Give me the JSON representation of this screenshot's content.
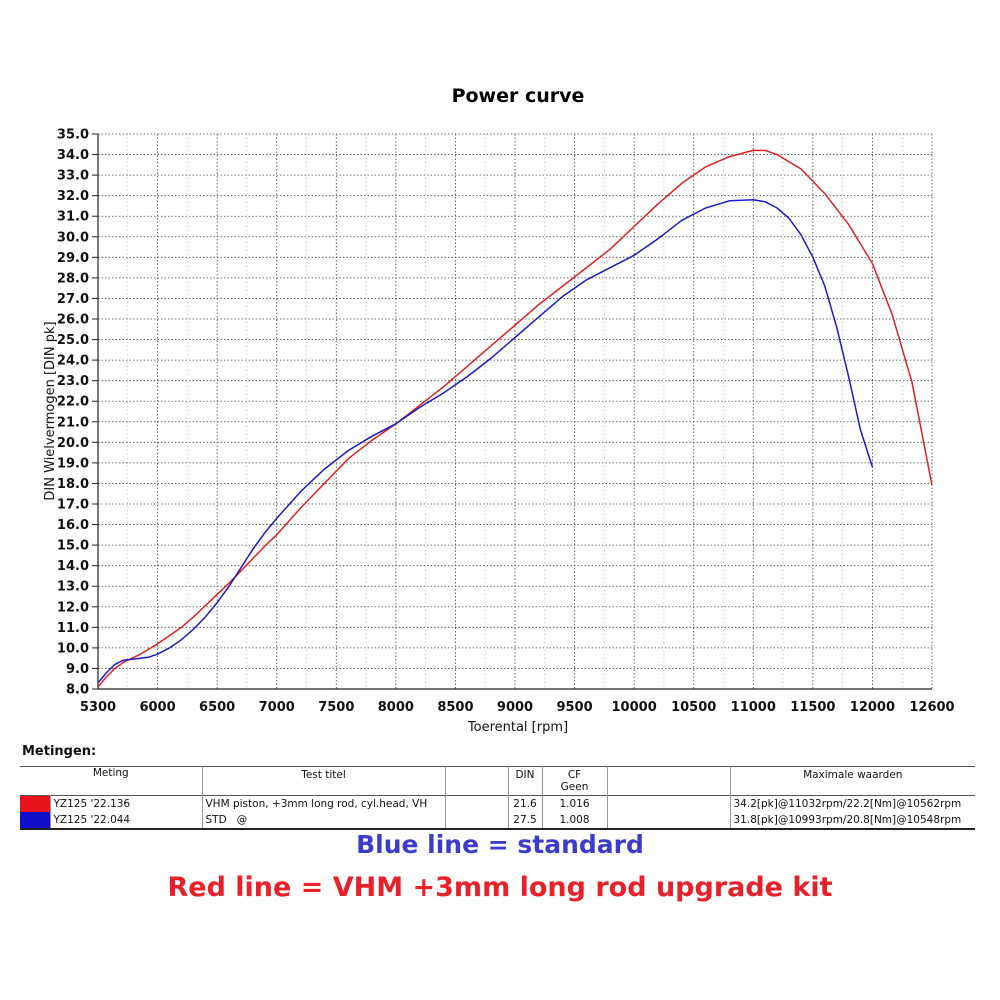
{
  "chart_data": {
    "type": "line",
    "title": "Power curve",
    "xlabel": "Toerental [rpm]",
    "ylabel": "DIN Wielvermogen [DIN pk]",
    "xlim": [
      5300,
      12600
    ],
    "ylim": [
      8.0,
      35.0
    ],
    "x_ticks": [
      "5300",
      "6000",
      "6500",
      "7000",
      "7500",
      "8000",
      "8500",
      "9000",
      "9500",
      "10000",
      "10500",
      "11000",
      "11500",
      "12000",
      "12600"
    ],
    "x_tick_values": [
      5300,
      6000,
      6500,
      7000,
      7500,
      8000,
      8500,
      9000,
      9500,
      10000,
      10500,
      11000,
      11500,
      12000,
      12600
    ],
    "y_ticks": [
      "8.0",
      "9.0",
      "10.0",
      "11.0",
      "12.0",
      "13.0",
      "14.0",
      "15.0",
      "16.0",
      "17.0",
      "18.0",
      "19.0",
      "20.0",
      "21.0",
      "22.0",
      "23.0",
      "24.0",
      "25.0",
      "26.0",
      "27.0",
      "28.0",
      "29.0",
      "30.0",
      "31.0",
      "32.0",
      "33.0",
      "34.0",
      "35.0"
    ],
    "grid": true,
    "series": [
      {
        "color": "#e02020",
        "x": [
          5300,
          5400,
          5500,
          5600,
          5700,
          5800,
          5900,
          6000,
          6100,
          6200,
          6300,
          6400,
          6500,
          6600,
          6700,
          6800,
          6900,
          7000,
          7200,
          7400,
          7600,
          7800,
          8000,
          8200,
          8400,
          8600,
          8800,
          9000,
          9200,
          9400,
          9600,
          9800,
          10000,
          10200,
          10400,
          10600,
          10800,
          11000,
          11100,
          11200,
          11400,
          11600,
          11800,
          12000,
          12200,
          12400,
          12600
        ],
        "y": [
          8.1,
          8.6,
          9.0,
          9.3,
          9.5,
          9.7,
          9.95,
          10.2,
          10.6,
          11.0,
          11.5,
          12.05,
          12.6,
          13.15,
          13.75,
          14.35,
          14.95,
          15.5,
          16.8,
          18.0,
          19.2,
          20.1,
          20.9,
          21.8,
          22.7,
          23.7,
          24.7,
          25.7,
          26.7,
          27.6,
          28.5,
          29.4,
          30.5,
          31.6,
          32.6,
          33.4,
          33.9,
          34.2,
          34.2,
          34.0,
          33.3,
          32.1,
          30.6,
          28.7,
          26.2,
          22.9,
          17.9
        ]
      },
      {
        "color": "#1a1acc",
        "x": [
          5300,
          5400,
          5500,
          5600,
          5700,
          5800,
          5900,
          6000,
          6100,
          6200,
          6300,
          6400,
          6500,
          6600,
          6700,
          6800,
          6900,
          7000,
          7200,
          7400,
          7600,
          7800,
          8000,
          8200,
          8400,
          8600,
          8800,
          9000,
          9200,
          9400,
          9600,
          9800,
          10000,
          10200,
          10400,
          10600,
          10800,
          11000,
          11100,
          11200,
          11300,
          11400,
          11500,
          11600,
          11700,
          11800,
          11900,
          12000
        ],
        "y": [
          8.3,
          8.8,
          9.2,
          9.4,
          9.45,
          9.5,
          9.55,
          9.7,
          10.0,
          10.4,
          10.9,
          11.5,
          12.2,
          13.0,
          13.9,
          14.8,
          15.6,
          16.3,
          17.6,
          18.7,
          19.6,
          20.3,
          20.9,
          21.7,
          22.4,
          23.2,
          24.1,
          25.1,
          26.1,
          27.1,
          27.9,
          28.5,
          29.1,
          29.9,
          30.8,
          31.4,
          31.75,
          31.8,
          31.7,
          31.4,
          30.9,
          30.1,
          29.0,
          27.6,
          25.6,
          23.2,
          20.6,
          18.8
        ]
      }
    ]
  },
  "metingen": {
    "heading": "Metingen:",
    "columns": {
      "meting": "Meting",
      "test_titel": "Test titel",
      "din": "DIN",
      "cf_line1": "CF",
      "cf_line2": "Geen",
      "maximale": "Maximale waarden"
    },
    "rows": [
      {
        "color": "#e8141b",
        "meting": "YZ125 '22.136",
        "test_titel": "VHM piston, +3mm long rod, cyl.head, VH",
        "din": "21.6",
        "cf": "1.016",
        "maximale": "34.2[pk]@11032rpm/22.2[Nm]@10562rpm"
      },
      {
        "color": "#1010c8",
        "meting": "YZ125 '22.044",
        "test_titel": "STD   @",
        "din": "27.5",
        "cf": "1.008",
        "maximale": "31.8[pk]@10993rpm/20.8[Nm]@10548rpm"
      }
    ]
  },
  "captions": {
    "blue": "Blue line = standard",
    "blue_color": "#3c3ccc",
    "red": "Red line = VHM +3mm long rod upgrade kit",
    "red_color": "#e8202a"
  }
}
